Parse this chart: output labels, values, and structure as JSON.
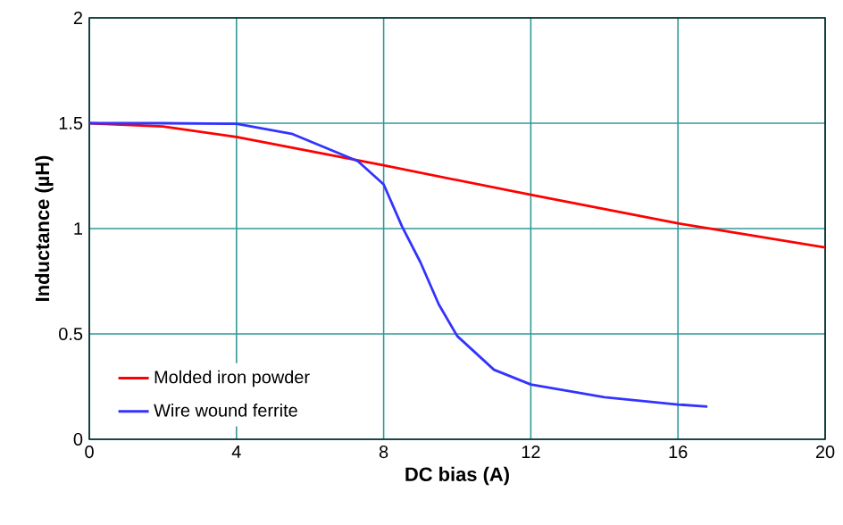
{
  "chart_data": {
    "type": "line",
    "xlabel": "DC bias (A)",
    "ylabel": "Inductance (µH)",
    "xlim": [
      0,
      20
    ],
    "ylim": [
      0,
      2
    ],
    "xticks": [
      0,
      4,
      8,
      12,
      16,
      20
    ],
    "yticks": [
      0,
      0.5,
      1,
      1.5,
      2
    ],
    "grid": true,
    "legend": "bottom left",
    "marker": "none",
    "line_style": "solid",
    "series": [
      {
        "name": "Molded iron powder",
        "color": "#ff0000",
        "x": [
          0,
          2,
          4,
          8,
          12,
          16,
          20
        ],
        "values": [
          1.5,
          1.485,
          1.435,
          1.3,
          1.16,
          1.025,
          0.91
        ]
      },
      {
        "name": "Wire wound ferrite",
        "color": "#3333ff",
        "x": [
          0,
          2,
          4,
          5.5,
          7.3,
          8,
          8.5,
          9,
          9.5,
          10,
          11,
          12,
          14,
          16,
          16.8
        ],
        "values": [
          1.5,
          1.5,
          1.497,
          1.45,
          1.32,
          1.21,
          1.01,
          0.84,
          0.64,
          0.49,
          0.33,
          0.26,
          0.2,
          0.165,
          0.155
        ]
      }
    ]
  }
}
